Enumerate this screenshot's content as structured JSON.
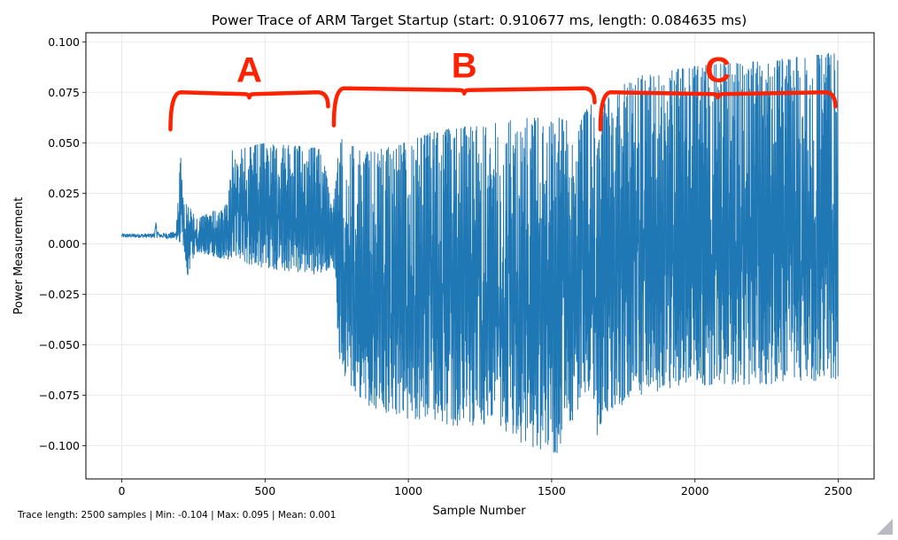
{
  "chart_data": {
    "type": "line",
    "title": "Power Trace of ARM Target Startup (start: 0.910677 ms, length: 0.084635 ms)",
    "xlabel": "Sample Number",
    "ylabel": "Power Measurement",
    "xlim": [
      -125,
      2625
    ],
    "ylim": [
      -0.1165,
      0.1045
    ],
    "xticks": [
      0,
      500,
      1000,
      1500,
      2000,
      2500
    ],
    "xtick_labels": [
      "0",
      "500",
      "1000",
      "1500",
      "2000",
      "2500"
    ],
    "yticks": [
      0.1,
      0.075,
      0.05,
      0.025,
      0.0,
      -0.025,
      -0.05,
      -0.075,
      -0.1
    ],
    "ytick_labels": [
      "0.100",
      "0.075",
      "0.050",
      "0.025",
      "0.000",
      "−0.025",
      "−0.050",
      "−0.075",
      "−0.100"
    ],
    "grid": true,
    "series": [
      {
        "name": "Power Trace",
        "color": "#1f77b4",
        "n_samples": 2500,
        "envelope": [
          {
            "x": 0,
            "hi": 0.005,
            "lo": 0.003
          },
          {
            "x": 110,
            "hi": 0.005,
            "lo": 0.003
          },
          {
            "x": 120,
            "hi": 0.011,
            "lo": 0.003
          },
          {
            "x": 130,
            "hi": 0.005,
            "lo": 0.003
          },
          {
            "x": 190,
            "hi": 0.006,
            "lo": 0.002
          },
          {
            "x": 205,
            "hi": 0.048,
            "lo": 0.0
          },
          {
            "x": 215,
            "hi": 0.02,
            "lo": -0.005
          },
          {
            "x": 230,
            "hi": 0.02,
            "lo": -0.016
          },
          {
            "x": 260,
            "hi": 0.012,
            "lo": -0.004
          },
          {
            "x": 370,
            "hi": 0.02,
            "lo": -0.008
          },
          {
            "x": 385,
            "hi": 0.046,
            "lo": -0.008
          },
          {
            "x": 500,
            "hi": 0.05,
            "lo": -0.012
          },
          {
            "x": 700,
            "hi": 0.047,
            "lo": -0.016
          },
          {
            "x": 735,
            "hi": 0.015,
            "lo": -0.01
          },
          {
            "x": 760,
            "hi": 0.053,
            "lo": -0.06
          },
          {
            "x": 830,
            "hi": 0.046,
            "lo": -0.08
          },
          {
            "x": 950,
            "hi": 0.048,
            "lo": -0.085
          },
          {
            "x": 1100,
            "hi": 0.056,
            "lo": -0.09
          },
          {
            "x": 1300,
            "hi": 0.06,
            "lo": -0.09
          },
          {
            "x": 1400,
            "hi": 0.062,
            "lo": -0.1
          },
          {
            "x": 1520,
            "hi": 0.063,
            "lo": -0.104
          },
          {
            "x": 1600,
            "hi": 0.06,
            "lo": -0.08
          },
          {
            "x": 1640,
            "hi": 0.072,
            "lo": -0.07
          },
          {
            "x": 1660,
            "hi": 0.05,
            "lo": -0.098
          },
          {
            "x": 1690,
            "hi": 0.075,
            "lo": -0.085
          },
          {
            "x": 1800,
            "hi": 0.083,
            "lo": -0.075
          },
          {
            "x": 2000,
            "hi": 0.088,
            "lo": -0.07
          },
          {
            "x": 2200,
            "hi": 0.09,
            "lo": -0.07
          },
          {
            "x": 2400,
            "hi": 0.093,
            "lo": -0.068
          },
          {
            "x": 2499,
            "hi": 0.095,
            "lo": -0.067
          }
        ]
      }
    ],
    "annotations": [
      {
        "label": "A",
        "x_from": 170,
        "x_to": 720,
        "y": 0.075,
        "color": "#ff2200"
      },
      {
        "label": "B",
        "x_from": 740,
        "x_to": 1650,
        "y": 0.077,
        "color": "#ff2200"
      },
      {
        "label": "C",
        "x_from": 1670,
        "x_to": 2490,
        "y": 0.075,
        "color": "#ff2200"
      }
    ]
  },
  "footer": {
    "stats": "Trace length: 2500 samples | Min: -0.104 | Max: 0.095 | Mean: 0.001"
  }
}
